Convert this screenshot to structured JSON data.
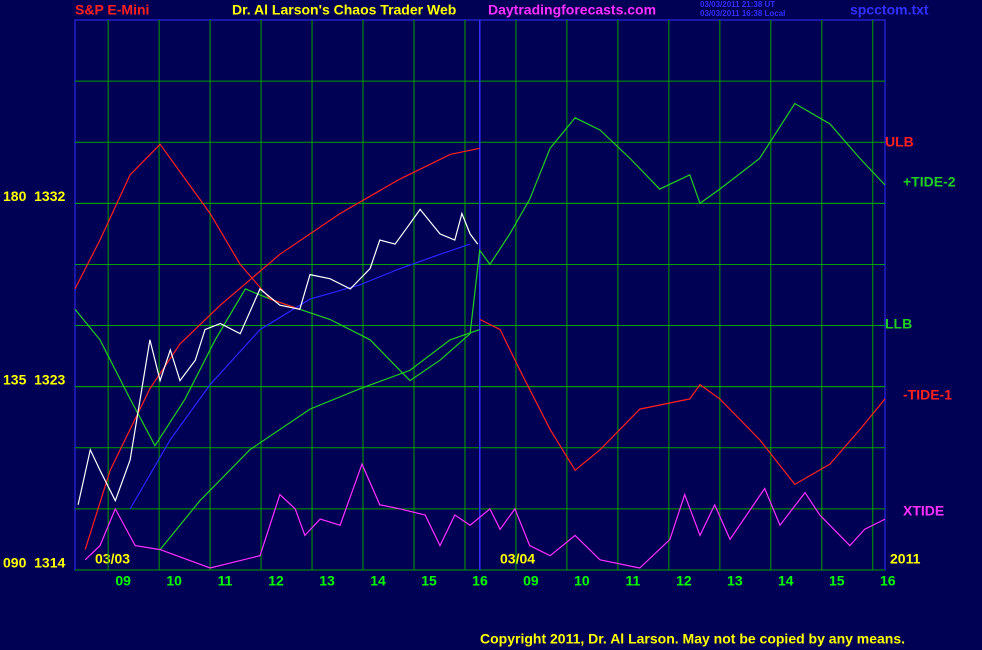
{
  "chart_data": {
    "type": "line",
    "header": {
      "symbol": "S&P E-Mini",
      "title": "Dr. Al Larson's Chaos Trader Web",
      "site": "Daytradingforecasts.com",
      "stamp_ut": "03/03/2011 21:38 UT",
      "stamp_local": "03/03/2011 16:38 Local",
      "file": "spcctom.txt"
    },
    "dates": [
      "03/03",
      "03/04",
      "2011"
    ],
    "copyright": "Copyright 2011, Dr. Al Larson. May not be copied by any means.",
    "xlim": [
      -0.65,
      15.24
    ],
    "ylim": [
      1314,
      1341
    ],
    "xticks": [
      {
        "value": 0,
        "label": "09"
      },
      {
        "value": 1,
        "label": "10"
      },
      {
        "value": 2,
        "label": "11"
      },
      {
        "value": 3,
        "label": "12"
      },
      {
        "value": 4,
        "label": "13"
      },
      {
        "value": 5,
        "label": "14"
      },
      {
        "value": 6,
        "label": "15"
      },
      {
        "value": 7,
        "label": "16"
      },
      {
        "value": 8,
        "label": "09"
      },
      {
        "value": 9,
        "label": "10"
      },
      {
        "value": 10,
        "label": "11"
      },
      {
        "value": 11,
        "label": "12"
      },
      {
        "value": 12,
        "label": "13"
      },
      {
        "value": 13,
        "label": "14"
      },
      {
        "value": 14,
        "label": "15"
      },
      {
        "value": 15,
        "label": "16"
      }
    ],
    "yticks": [
      {
        "value": 1314,
        "label": "090  1314"
      },
      {
        "value": 1323,
        "label": "135  1323"
      },
      {
        "value": 1332,
        "label": "180  1332"
      }
    ],
    "ygrid": [
      1317,
      1320,
      1323,
      1326,
      1329,
      1332,
      1335,
      1338
    ],
    "grid": true,
    "now_x": 7.29,
    "series": [
      {
        "name": "ULB",
        "color": "#ff2020",
        "x": [
          -0.45,
          0.04,
          0.82,
          1.41,
          2.2,
          3.37,
          4.55,
          5.73,
          6.71,
          7.29
        ],
        "values": [
          1315.0,
          1318.9,
          1322.9,
          1325.1,
          1327.0,
          1329.5,
          1331.5,
          1333.2,
          1334.4,
          1334.7
        ]
      },
      {
        "name": "+TIDE-2",
        "color": "#20d020",
        "x": [
          -0.65,
          -0.16,
          0.43,
          0.92,
          1.51,
          2.1,
          2.69,
          3.18,
          3.76,
          4.35,
          5.14,
          5.92,
          6.51,
          7.1,
          7.29,
          7.49,
          7.88,
          8.27,
          8.67,
          9.16,
          9.65,
          10.24,
          10.82,
          11.41,
          11.61,
          12.0,
          12.78,
          13.47,
          14.16,
          14.75,
          15.24
        ],
        "values": [
          1326.8,
          1325.3,
          1322.4,
          1320.1,
          1322.4,
          1325.3,
          1327.8,
          1327.3,
          1326.8,
          1326.3,
          1325.3,
          1323.3,
          1324.3,
          1325.6,
          1329.7,
          1329.0,
          1330.5,
          1332.2,
          1334.7,
          1336.2,
          1335.6,
          1334.2,
          1332.7,
          1333.4,
          1332.0,
          1332.7,
          1334.2,
          1336.9,
          1335.9,
          1334.2,
          1332.9
        ]
      },
      {
        "name": "LLB",
        "color": "#20d020",
        "x": [
          1.02,
          1.8,
          2.78,
          3.96,
          4.94,
          5.92,
          6.71,
          7.29
        ],
        "values": [
          1315.0,
          1317.4,
          1319.9,
          1321.9,
          1322.9,
          1323.8,
          1325.3,
          1325.8
        ]
      },
      {
        "name": "-TIDE-1",
        "color": "#ff2020",
        "x": [
          -0.65,
          -0.16,
          0.43,
          1.02,
          1.51,
          2.0,
          2.59,
          3.18,
          3.76,
          5,
          7.29,
          7.69,
          8.08,
          8.67,
          9.16,
          9.65,
          10.43,
          11.41,
          11.61,
          12.0,
          12.78,
          13.47,
          14.16,
          14.75,
          15.24
        ],
        "values": [
          1327.8,
          1330.2,
          1333.4,
          1334.9,
          1333.2,
          1331.5,
          1329.0,
          1327.3,
          1326.8,
          null,
          1326.3,
          1325.8,
          1323.8,
          1320.9,
          1318.9,
          1319.9,
          1321.9,
          1322.4,
          1323.1,
          1322.4,
          1320.4,
          1318.2,
          1319.2,
          1320.9,
          1322.4
        ]
      },
      {
        "name": "XTIDE",
        "color": "#ff30ff",
        "x": [
          -0.45,
          -0.16,
          0.14,
          0.53,
          1.02,
          2.0,
          2.98,
          3.37,
          3.67,
          3.86,
          4.16,
          4.55,
          4.98,
          5.33,
          5.73,
          6.22,
          6.51,
          6.8,
          7.1,
          7.49,
          7.69,
          7.98,
          8.27,
          8.67,
          9.16,
          9.65,
          10.43,
          11.02,
          11.31,
          11.61,
          11.9,
          12.2,
          12.88,
          13.18,
          13.67,
          13.96,
          14.55,
          14.84,
          15.24
        ],
        "values": [
          1314.5,
          1315.2,
          1317.0,
          1315.2,
          1315.0,
          1314.1,
          1314.7,
          1317.7,
          1317.0,
          1315.7,
          1316.5,
          1316.2,
          1319.2,
          1317.2,
          1317.0,
          1316.7,
          1315.2,
          1316.7,
          1316.2,
          1317.0,
          1316.0,
          1317.0,
          1315.2,
          1314.7,
          1315.7,
          1314.5,
          1314.1,
          1315.5,
          1317.7,
          1315.7,
          1317.2,
          1315.5,
          1318.0,
          1316.2,
          1317.8,
          1316.7,
          1315.2,
          1316.0,
          1316.5
        ]
      },
      {
        "color": "#2828ff",
        "x": [
          0.43,
          1.22,
          2.0,
          2.98,
          3.96,
          4.94,
          5.73,
          6.51,
          7.1
        ],
        "values": [
          1317.0,
          1320.4,
          1323.1,
          1325.8,
          1327.3,
          1328.0,
          1328.8,
          1329.5,
          1330.0
        ]
      },
      {
        "color": "#ffffff",
        "x": [
          -0.59,
          -0.35,
          -0.16,
          0.14,
          0.43,
          0.63,
          0.82,
          1.02,
          1.22,
          1.41,
          1.71,
          1.9,
          2.2,
          2.59,
          2.98,
          3.37,
          3.76,
          3.96,
          4.35,
          4.75,
          5.14,
          5.33,
          5.63,
          5.92,
          6.12,
          6.51,
          6.8,
          6.94,
          7.1,
          7.25
        ],
        "values": [
          1317.2,
          1319.9,
          1318.9,
          1317.4,
          1319.4,
          1322.4,
          1325.3,
          1323.3,
          1324.8,
          1323.3,
          1324.3,
          1325.8,
          1326.1,
          1325.6,
          1327.8,
          1327.0,
          1326.8,
          1328.5,
          1328.3,
          1327.8,
          1328.8,
          1330.2,
          1330.0,
          1331.0,
          1331.7,
          1330.5,
          1330.2,
          1331.5,
          1330.5,
          1330.0
        ]
      }
    ]
  }
}
